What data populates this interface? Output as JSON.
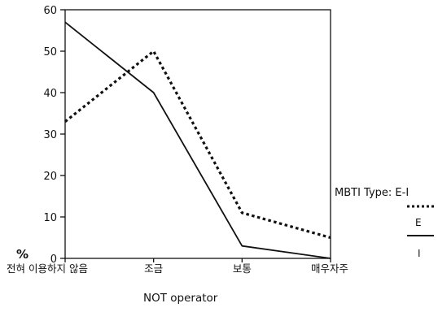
{
  "chart_data": {
    "type": "line",
    "categories": [
      "전혀 이용하지 않음",
      "조금",
      "보통",
      "매우자주"
    ],
    "yticks": [
      0,
      10,
      20,
      30,
      40,
      50,
      60
    ],
    "ylim": [
      0,
      60
    ],
    "ylabel": "%",
    "xlabel": "NOT operator",
    "legend": {
      "title": "MBTI Type: E-I",
      "placement": "right"
    },
    "series": [
      {
        "name": "E",
        "values": [
          33,
          50,
          11,
          5
        ],
        "style": "dotted",
        "color": "#111111"
      },
      {
        "name": "I",
        "values": [
          57,
          40,
          3,
          0
        ],
        "style": "solid",
        "color": "#111111"
      }
    ]
  }
}
